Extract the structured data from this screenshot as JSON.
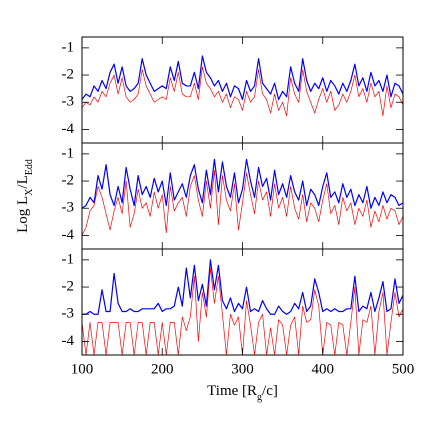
{
  "chart_data": [
    {
      "type": "line",
      "x": [
        100,
        105,
        110,
        115,
        120,
        125,
        130,
        135,
        140,
        145,
        150,
        155,
        160,
        165,
        170,
        175,
        180,
        185,
        190,
        195,
        200,
        205,
        210,
        215,
        220,
        225,
        230,
        235,
        240,
        245,
        250,
        255,
        260,
        265,
        270,
        275,
        280,
        285,
        290,
        295,
        300,
        305,
        310,
        315,
        320,
        325,
        330,
        335,
        340,
        345,
        350,
        355,
        360,
        365,
        370,
        375,
        380,
        385,
        390,
        395,
        400,
        405,
        410,
        415,
        420,
        425,
        430,
        435,
        440,
        445,
        450,
        455,
        460,
        465,
        470,
        475,
        480,
        485,
        490,
        495,
        500
      ],
      "xlim": [
        100,
        500
      ],
      "ylim": [
        -4.5,
        -0.6
      ],
      "yticks": [
        -1,
        -2,
        -3,
        -4
      ],
      "series": [
        {
          "color": "#0000ff",
          "values": [
            -2.9,
            -2.7,
            -2.8,
            -2.4,
            -2.6,
            -2.2,
            -2.5,
            -1.9,
            -1.6,
            -2.3,
            -1.7,
            -2.4,
            -2.6,
            -2.5,
            -2.3,
            -1.4,
            -2.0,
            -2.3,
            -2.6,
            -2.5,
            -2.4,
            -2.5,
            -1.7,
            -2.2,
            -1.5,
            -2.3,
            -2.4,
            -2.4,
            -1.9,
            -2.5,
            -1.3,
            -1.9,
            -2.1,
            -2.4,
            -2.2,
            -2.6,
            -2.3,
            -2.8,
            -2.4,
            -2.5,
            -2.9,
            -2.2,
            -2.6,
            -2.4,
            -1.4,
            -2.3,
            -2.5,
            -2.7,
            -2.3,
            -2.9,
            -2.6,
            -2.8,
            -1.7,
            -2.3,
            -2.6,
            -1.4,
            -2.2,
            -2.6,
            -2.3,
            -2.5,
            -2.1,
            -2.6,
            -2.2,
            -2.4,
            -2.7,
            -2.3,
            -2.6,
            -2.2,
            -1.6,
            -2.4,
            -2.1,
            -2.6,
            -1.9,
            -2.4,
            -2.2,
            -2.6,
            -2.0,
            -2.8,
            -2.3,
            -2.4,
            -2.7
          ]
        },
        {
          "color": "#ff0000",
          "values": [
            -3.2,
            -3.0,
            -3.1,
            -2.8,
            -3.0,
            -2.6,
            -2.8,
            -2.3,
            -2.0,
            -2.7,
            -2.1,
            -2.8,
            -3.0,
            -2.9,
            -2.7,
            -1.8,
            -2.4,
            -2.7,
            -3.0,
            -2.9,
            -2.8,
            -2.9,
            -2.1,
            -2.6,
            -1.9,
            -2.7,
            -2.8,
            -2.8,
            -2.3,
            -2.9,
            -1.7,
            -2.3,
            -2.5,
            -2.8,
            -2.6,
            -3.0,
            -2.7,
            -3.2,
            -2.8,
            -2.9,
            -3.3,
            -2.6,
            -3.0,
            -2.8,
            -1.8,
            -2.7,
            -2.9,
            -3.4,
            -2.7,
            -3.3,
            -3.0,
            -3.5,
            -2.1,
            -2.7,
            -3.0,
            -1.8,
            -2.6,
            -3.0,
            -3.4,
            -2.9,
            -2.5,
            -3.0,
            -2.6,
            -3.3,
            -3.1,
            -2.7,
            -3.0,
            -2.6,
            -2.0,
            -2.8,
            -2.5,
            -3.0,
            -2.3,
            -2.8,
            -2.6,
            -3.5,
            -2.4,
            -3.2,
            -2.7,
            -2.8,
            -3.1
          ]
        }
      ]
    },
    {
      "type": "line",
      "x": [
        100,
        105,
        110,
        115,
        120,
        125,
        130,
        135,
        140,
        145,
        150,
        155,
        160,
        165,
        170,
        175,
        180,
        185,
        190,
        195,
        200,
        205,
        210,
        215,
        220,
        225,
        230,
        235,
        240,
        245,
        250,
        255,
        260,
        265,
        270,
        275,
        280,
        285,
        290,
        295,
        300,
        305,
        310,
        315,
        320,
        325,
        330,
        335,
        340,
        345,
        350,
        355,
        360,
        365,
        370,
        375,
        380,
        385,
        390,
        395,
        400,
        405,
        410,
        415,
        420,
        425,
        430,
        435,
        440,
        445,
        450,
        455,
        460,
        465,
        470,
        475,
        480,
        485,
        490,
        495,
        500
      ],
      "xlim": [
        100,
        500
      ],
      "ylim": [
        -4.5,
        -0.6
      ],
      "yticks": [
        -1,
        -2,
        -3,
        -4
      ],
      "ylabel": [
        "Log L",
        "X",
        "/L",
        "Edd"
      ],
      "series": [
        {
          "color": "#0000ff",
          "values": [
            -3.0,
            -2.9,
            -2.6,
            -2.8,
            -1.8,
            -2.3,
            -1.4,
            -2.5,
            -2.9,
            -2.2,
            -2.8,
            -1.5,
            -2.3,
            -2.9,
            -1.8,
            -2.5,
            -2.2,
            -2.6,
            -1.9,
            -2.4,
            -2.0,
            -2.9,
            -1.7,
            -2.7,
            -2.4,
            -2.1,
            -2.6,
            -1.8,
            -1.4,
            -2.3,
            -2.8,
            -1.6,
            -2.5,
            -1.2,
            -2.4,
            -1.3,
            -2.2,
            -2.6,
            -1.7,
            -2.8,
            -2.3,
            -1.2,
            -2.0,
            -2.6,
            -1.5,
            -2.2,
            -1.9,
            -2.7,
            -1.6,
            -2.5,
            -2.1,
            -2.6,
            -1.8,
            -2.4,
            -2.7,
            -2.0,
            -2.9,
            -2.3,
            -2.5,
            -2.9,
            -2.2,
            -1.7,
            -2.6,
            -2.4,
            -2.8,
            -2.1,
            -2.6,
            -2.3,
            -2.9,
            -2.5,
            -2.8,
            -2.2,
            -3.0,
            -2.6,
            -2.9,
            -2.4,
            -2.8,
            -2.5,
            -2.6,
            -2.9,
            -2.8
          ]
        },
        {
          "color": "#ff0000",
          "values": [
            -4.0,
            -3.7,
            -3.1,
            -2.9,
            -2.2,
            -2.6,
            -3.2,
            -3.8,
            -3.1,
            -2.6,
            -3.2,
            -2.0,
            -3.7,
            -3.2,
            -2.3,
            -3.0,
            -2.8,
            -3.3,
            -2.4,
            -3.0,
            -2.5,
            -3.9,
            -2.2,
            -3.1,
            -2.8,
            -2.6,
            -3.3,
            -2.2,
            -1.8,
            -2.7,
            -3.3,
            -2.0,
            -3.0,
            -1.6,
            -3.6,
            -1.8,
            -2.7,
            -3.1,
            -2.1,
            -3.8,
            -2.8,
            -1.7,
            -2.5,
            -3.2,
            -2.0,
            -2.7,
            -2.4,
            -3.3,
            -2.1,
            -3.0,
            -2.6,
            -3.3,
            -2.2,
            -3.0,
            -3.4,
            -2.5,
            -3.5,
            -2.8,
            -3.0,
            -3.5,
            -2.7,
            -2.1,
            -3.2,
            -2.9,
            -3.6,
            -2.6,
            -3.1,
            -2.8,
            -3.6,
            -3.0,
            -3.3,
            -2.7,
            -3.7,
            -3.1,
            -3.5,
            -2.9,
            -3.4,
            -3.0,
            -3.1,
            -3.6,
            -3.3
          ]
        }
      ]
    },
    {
      "type": "line",
      "x": [
        100,
        105,
        110,
        115,
        120,
        125,
        130,
        135,
        140,
        145,
        150,
        155,
        160,
        165,
        170,
        175,
        180,
        185,
        190,
        195,
        200,
        205,
        210,
        215,
        220,
        225,
        230,
        235,
        240,
        245,
        250,
        255,
        260,
        265,
        270,
        275,
        280,
        285,
        290,
        295,
        300,
        305,
        310,
        315,
        320,
        325,
        330,
        335,
        340,
        345,
        350,
        355,
        360,
        365,
        370,
        375,
        380,
        385,
        390,
        395,
        400,
        405,
        410,
        415,
        420,
        425,
        430,
        435,
        440,
        445,
        450,
        455,
        460,
        465,
        470,
        475,
        480,
        485,
        490,
        495,
        500
      ],
      "xlim": [
        100,
        500
      ],
      "ylim": [
        -4.5,
        -0.6
      ],
      "yticks": [
        -1,
        -2,
        -3,
        -4
      ],
      "xticks": [
        100,
        200,
        300,
        400,
        500
      ],
      "xlabel": [
        "Time [R",
        "g",
        "/c]"
      ],
      "series": [
        {
          "color": "#0000ff",
          "values": [
            -3.0,
            -3.0,
            -2.9,
            -3.0,
            -3.0,
            -2.1,
            -2.9,
            -2.9,
            -1.5,
            -2.6,
            -2.9,
            -2.9,
            -2.8,
            -2.9,
            -2.9,
            -2.8,
            -2.8,
            -2.8,
            -2.8,
            -2.6,
            -2.9,
            -2.8,
            -2.8,
            -2.7,
            -2.0,
            -2.7,
            -1.3,
            -2.4,
            -1.2,
            -2.5,
            -1.9,
            -2.7,
            -1.0,
            -2.1,
            -1.2,
            -2.5,
            -2.8,
            -2.4,
            -2.9,
            -2.6,
            -2.8,
            -2.0,
            -2.9,
            -2.8,
            -2.9,
            -2.5,
            -2.8,
            -3.0,
            -3.0,
            -2.7,
            -2.9,
            -3.0,
            -2.9,
            -2.6,
            -2.8,
            -2.2,
            -2.9,
            -2.7,
            -1.7,
            -2.2,
            -2.9,
            -2.8,
            -2.9,
            -2.8,
            -2.9,
            -2.9,
            -2.8,
            -2.8,
            -1.6,
            -2.9,
            -2.7,
            -2.8,
            -2.2,
            -2.9,
            -2.4,
            -1.8,
            -2.9,
            -2.8,
            -1.7,
            -2.6,
            -2.3
          ]
        },
        {
          "color": "#ff0000",
          "values": [
            -3.3,
            -4.5,
            -3.3,
            -4.5,
            -3.3,
            -3.3,
            -4.5,
            -3.3,
            -3.3,
            -3.3,
            -4.5,
            -3.3,
            -3.3,
            -4.5,
            -3.3,
            -3.3,
            -4.5,
            -3.3,
            -3.3,
            -4.5,
            -3.3,
            -4.5,
            -3.3,
            -3.3,
            -4.5,
            -3.1,
            -3.6,
            -3.1,
            -1.6,
            -4.0,
            -2.2,
            -3.1,
            -1.3,
            -2.6,
            -1.6,
            -3.0,
            -4.5,
            -3.0,
            -3.4,
            -3.1,
            -4.5,
            -2.5,
            -3.4,
            -4.5,
            -3.3,
            -3.0,
            -4.5,
            -3.5,
            -4.5,
            -3.2,
            -3.4,
            -4.5,
            -3.4,
            -3.1,
            -4.5,
            -2.7,
            -3.3,
            -3.2,
            -2.1,
            -2.7,
            -4.5,
            -3.3,
            -3.4,
            -4.5,
            -3.3,
            -3.4,
            -4.5,
            -3.3,
            -2.0,
            -4.5,
            -3.2,
            -3.3,
            -2.7,
            -4.5,
            -2.9,
            -2.2,
            -4.5,
            -3.3,
            -2.2,
            -3.1,
            -2.8
          ]
        }
      ]
    }
  ]
}
